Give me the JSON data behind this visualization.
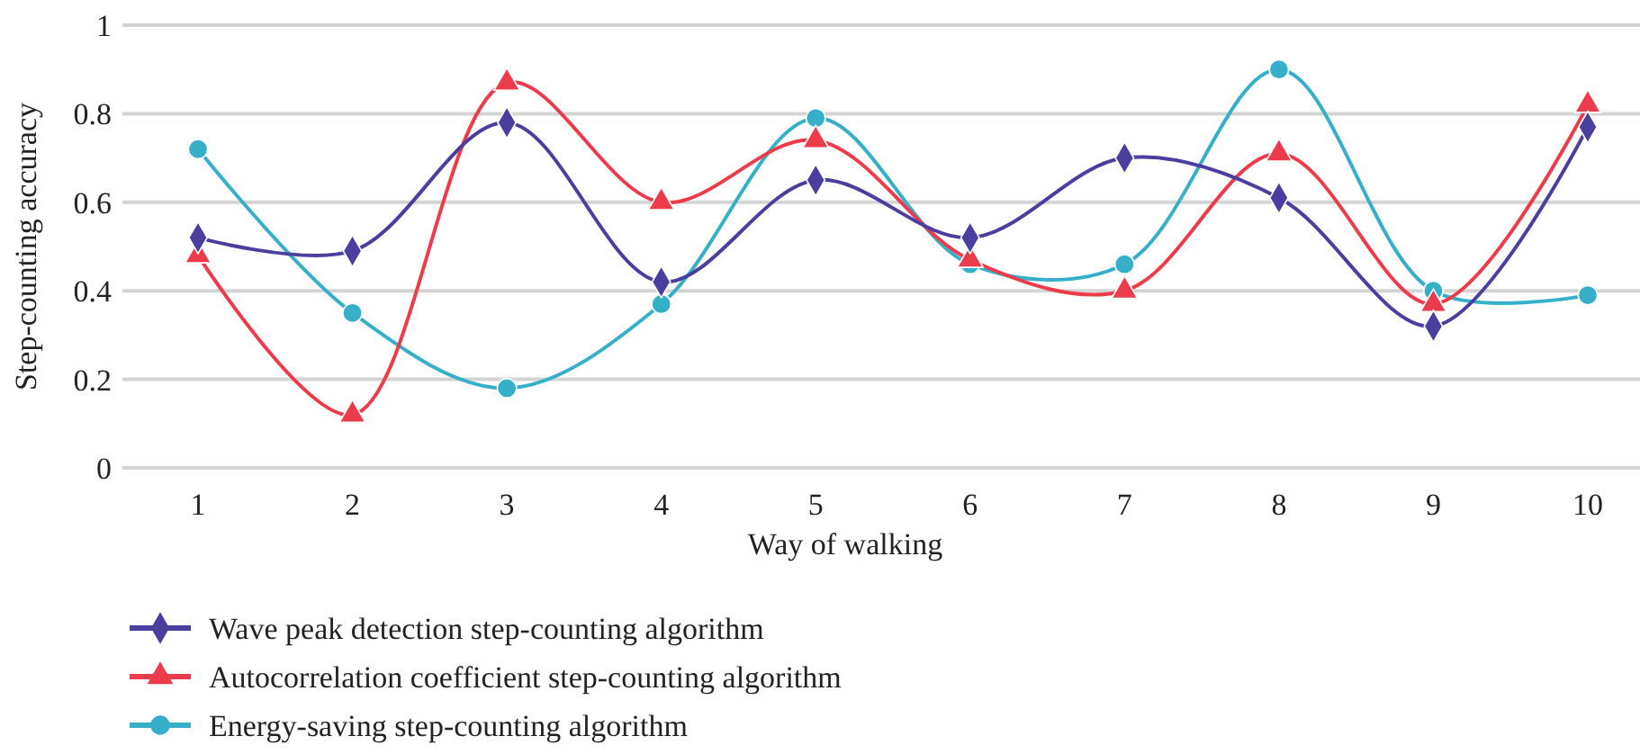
{
  "chart_data": {
    "type": "line",
    "xlabel": "Way of walking",
    "ylabel": "Step-counting accuracy",
    "categories": [
      "1",
      "2",
      "3",
      "4",
      "5",
      "6",
      "7",
      "8",
      "9",
      "10"
    ],
    "series": [
      {
        "name": "Wave peak detection step-counting algorithm",
        "color": "#4a3f9e",
        "marker": "diamond",
        "values": [
          0.52,
          0.49,
          0.78,
          0.42,
          0.65,
          0.52,
          0.7,
          0.61,
          0.32,
          0.77
        ]
      },
      {
        "name": "Autocorrelation coefficient step-counting algorithm",
        "color": "#ec3b4a",
        "marker": "triangle",
        "values": [
          0.48,
          0.12,
          0.87,
          0.6,
          0.74,
          0.47,
          0.4,
          0.71,
          0.37,
          0.82
        ]
      },
      {
        "name": "Energy-saving step-counting algorithm",
        "color": "#35b0c8",
        "marker": "circle",
        "values": [
          0.72,
          0.35,
          0.18,
          0.37,
          0.79,
          0.46,
          0.46,
          0.9,
          0.4,
          0.39
        ]
      }
    ],
    "ylim": [
      0,
      1
    ],
    "yticks": [
      0,
      0.2,
      0.4,
      0.6,
      0.8,
      1
    ],
    "grid": "y",
    "legend": "bottom left"
  }
}
